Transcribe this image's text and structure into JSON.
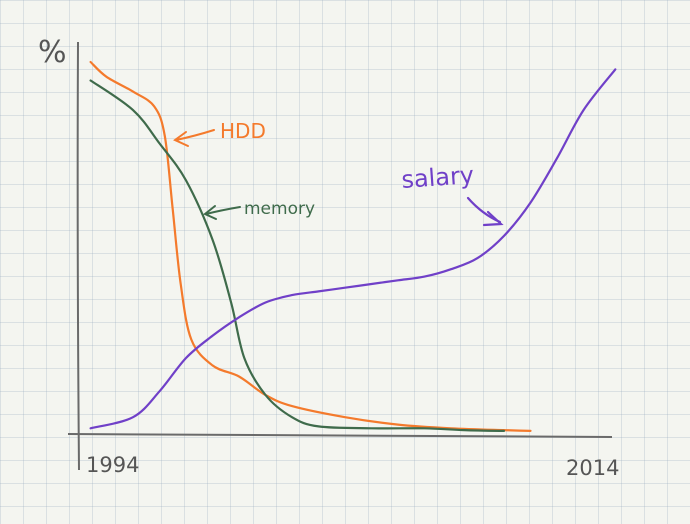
{
  "chart_data": {
    "type": "line",
    "ylabel": "%",
    "x_tick_labels": [
      "1994",
      "2014"
    ],
    "xlim": [
      1994,
      2014
    ],
    "ylim": [
      0,
      100
    ],
    "grid": true,
    "series": [
      {
        "name": "HDD",
        "color": "#f47a2c",
        "points": [
          [
            1994.4,
            100
          ],
          [
            1995.0,
            96
          ],
          [
            1996.0,
            92
          ],
          [
            1996.8,
            88
          ],
          [
            1997.2,
            80
          ],
          [
            1997.5,
            60
          ],
          [
            1997.8,
            40
          ],
          [
            1998.2,
            25
          ],
          [
            1999.0,
            18
          ],
          [
            2000.0,
            15
          ],
          [
            2001.0,
            10
          ],
          [
            2002.0,
            7
          ],
          [
            2004.0,
            4
          ],
          [
            2006.0,
            2
          ],
          [
            2008.0,
            1
          ],
          [
            2010.0,
            0.5
          ],
          [
            2011.0,
            0.3
          ]
        ]
      },
      {
        "name": "memory",
        "color": "#3f6b4b",
        "points": [
          [
            1994.4,
            95
          ],
          [
            1996.0,
            87
          ],
          [
            1997.0,
            78
          ],
          [
            1998.0,
            68
          ],
          [
            1999.0,
            52
          ],
          [
            1999.7,
            35
          ],
          [
            2000.2,
            20
          ],
          [
            2001.0,
            10
          ],
          [
            2002.0,
            4
          ],
          [
            2003.0,
            1.5
          ],
          [
            2005.0,
            1
          ],
          [
            2007.0,
            1
          ],
          [
            2008.5,
            0.5
          ],
          [
            2010.0,
            0.3
          ]
        ]
      },
      {
        "name": "salary",
        "color": "#7040c8",
        "points": [
          [
            1994.4,
            1
          ],
          [
            1996.0,
            4
          ],
          [
            1997.0,
            11
          ],
          [
            1998.0,
            20
          ],
          [
            1999.0,
            26
          ],
          [
            2000.0,
            31
          ],
          [
            2001.0,
            35
          ],
          [
            2002.0,
            37
          ],
          [
            2003.0,
            38
          ],
          [
            2004.0,
            39
          ],
          [
            2005.0,
            40
          ],
          [
            2006.0,
            41
          ],
          [
            2007.0,
            42
          ],
          [
            2008.0,
            44
          ],
          [
            2009.0,
            47
          ],
          [
            2010.0,
            53
          ],
          [
            2011.0,
            62
          ],
          [
            2012.0,
            74
          ],
          [
            2013.0,
            87
          ],
          [
            2014.2,
            98
          ]
        ]
      }
    ],
    "annotations": [
      {
        "text": "HDD",
        "series": "HDD"
      },
      {
        "text": "memory",
        "series": "memory"
      },
      {
        "text": "salary",
        "series": "salary"
      }
    ]
  }
}
